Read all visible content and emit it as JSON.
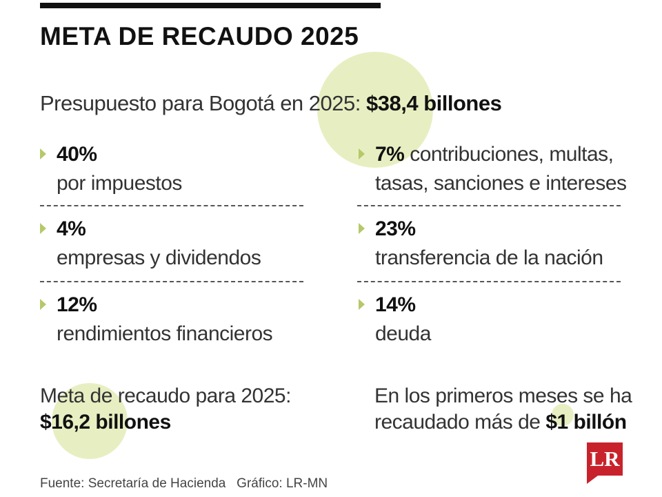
{
  "header": {
    "title": "META DE RECAUDO 2025"
  },
  "budget": {
    "label": "Presupuesto para Bogotá en 2025:",
    "value": "$38,4 billones"
  },
  "items": [
    {
      "pct": "40%",
      "desc": "por impuestos"
    },
    {
      "pct": "4%",
      "desc": "empresas y dividendos"
    },
    {
      "pct": "12%",
      "desc": "rendimientos financieros"
    },
    {
      "pct": "7%",
      "inline": "contribuciones, multas,",
      "desc": "tasas, sanciones e intereses"
    },
    {
      "pct": "23%",
      "desc": "transferencia de la nación"
    },
    {
      "pct": "14%",
      "desc": "deuda"
    }
  ],
  "goal": {
    "label": "Meta de recaudo para 2025:",
    "value": "$16,2 billones"
  },
  "collected": {
    "line1": "En los primeros meses se ha",
    "line2": "recaudado más de",
    "value": "$1 billón"
  },
  "footer": {
    "source": "Fuente: Secretaría de Hacienda   Gráfico: LR-MN"
  },
  "logo": {
    "text": "LR"
  },
  "colors": {
    "accent": "#e7efc2",
    "arrow": "#b5c96a",
    "brand": "#c8232c"
  }
}
